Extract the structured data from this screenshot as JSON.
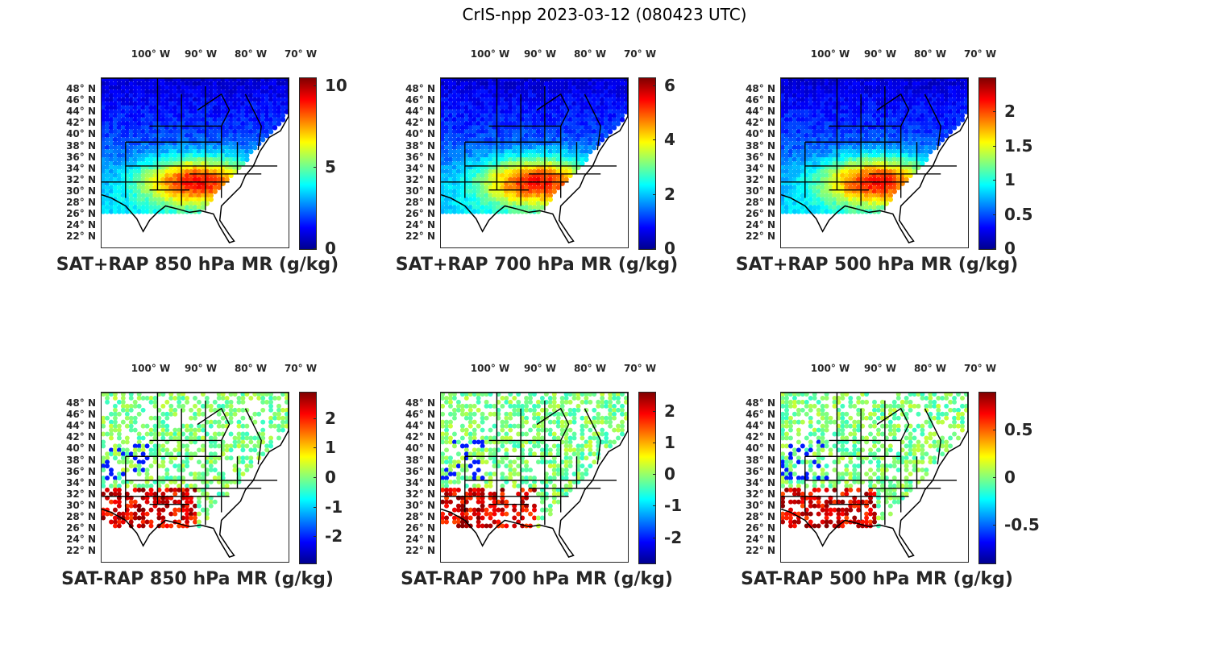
{
  "figure_title": "CrIS-npp 2023-03-12 (080423 UTC)",
  "lon_labels": [
    "100° W",
    "90° W",
    "80° W",
    "70° W"
  ],
  "lat_labels": [
    "48° N",
    "46° N",
    "44° N",
    "42° N",
    "40° N",
    "38° N",
    "36° N",
    "34° N",
    "32° N",
    "30° N",
    "28° N",
    "26° N",
    "24° N",
    "22° N"
  ],
  "colormap": "jet",
  "panels": [
    {
      "title": "SAT+RAP 850 hPa MR (g/kg)",
      "cbar_range": [
        0,
        10.5
      ],
      "cbar_ticks": [
        {
          "label": "0",
          "value": 0
        },
        {
          "label": "5",
          "value": 5
        },
        {
          "label": "10",
          "value": 10
        }
      ],
      "field": "total"
    },
    {
      "title": "SAT+RAP 700 hPa MR (g/kg)",
      "cbar_range": [
        0,
        6.3
      ],
      "cbar_ticks": [
        {
          "label": "0",
          "value": 0
        },
        {
          "label": "2",
          "value": 2
        },
        {
          "label": "4",
          "value": 4
        },
        {
          "label": "6",
          "value": 6
        }
      ],
      "field": "total"
    },
    {
      "title": "SAT+RAP 500 hPa MR (g/kg)",
      "cbar_range": [
        0,
        2.5
      ],
      "cbar_ticks": [
        {
          "label": "0",
          "value": 0
        },
        {
          "label": "0.5",
          "value": 0.5
        },
        {
          "label": "1",
          "value": 1
        },
        {
          "label": "1.5",
          "value": 1.5
        },
        {
          "label": "2",
          "value": 2
        }
      ],
      "field": "total"
    },
    {
      "title": "SAT-RAP 850 hPa MR (g/kg)",
      "cbar_range": [
        -2.9,
        2.9
      ],
      "cbar_ticks": [
        {
          "label": "-2",
          "value": -2
        },
        {
          "label": "-1",
          "value": -1
        },
        {
          "label": "0",
          "value": 0
        },
        {
          "label": "1",
          "value": 1
        },
        {
          "label": "2",
          "value": 2
        }
      ],
      "field": "diff"
    },
    {
      "title": "SAT-RAP 700 hPa MR (g/kg)",
      "cbar_range": [
        -2.8,
        2.6
      ],
      "cbar_ticks": [
        {
          "label": "-2",
          "value": -2
        },
        {
          "label": "-1",
          "value": -1
        },
        {
          "label": "0",
          "value": 0
        },
        {
          "label": "1",
          "value": 1
        },
        {
          "label": "2",
          "value": 2
        }
      ],
      "field": "diff"
    },
    {
      "title": "SAT-RAP 500 hPa MR (g/kg)",
      "cbar_range": [
        -0.9,
        0.9
      ],
      "cbar_ticks": [
        {
          "label": "-0.5",
          "value": -0.5
        },
        {
          "label": "0",
          "value": 0
        },
        {
          "label": "0.5",
          "value": 0.5
        }
      ],
      "field": "diff"
    }
  ]
}
